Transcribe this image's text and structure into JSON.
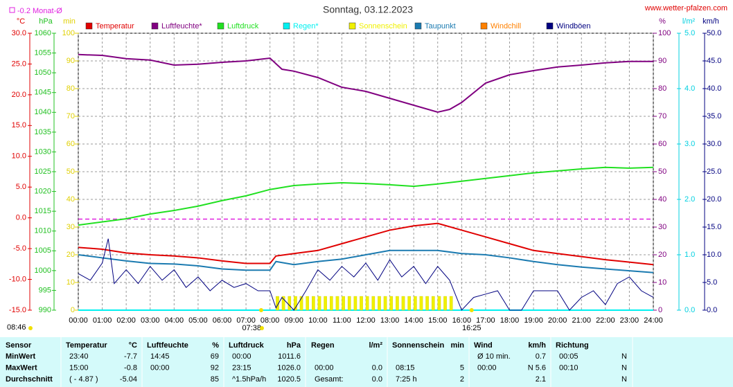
{
  "chart_data": {
    "type": "line",
    "title": "Sonntag, 03.12.2023",
    "source": "www.wetter-pfalzen.com",
    "monthly_avg": {
      "label": "-0.2 Monat-Ø",
      "value": -0.2,
      "color": "#e020e0"
    },
    "grid": true,
    "xlim": [
      0,
      24
    ],
    "xticks": [
      {
        "value": 0,
        "label": "00:00"
      },
      {
        "value": 1,
        "label": "01:00"
      },
      {
        "value": 2,
        "label": "02:00"
      },
      {
        "value": 3,
        "label": "03:00"
      },
      {
        "value": 4,
        "label": "04:00"
      },
      {
        "value": 5,
        "label": "05:00"
      },
      {
        "value": 6,
        "label": "06:00"
      },
      {
        "value": 7,
        "label": "07:00"
      },
      {
        "value": 8,
        "label": "08:00"
      },
      {
        "value": 9,
        "label": "09:00"
      },
      {
        "value": 10,
        "label": "10:00"
      },
      {
        "value": 11,
        "label": "11:00"
      },
      {
        "value": 12,
        "label": "12:00"
      },
      {
        "value": 13,
        "label": "13:00"
      },
      {
        "value": 14,
        "label": "14:00"
      },
      {
        "value": 15,
        "label": "15:00"
      },
      {
        "value": 16,
        "label": "16:00"
      },
      {
        "value": 17,
        "label": "17:00"
      },
      {
        "value": 18,
        "label": "18:00"
      },
      {
        "value": 19,
        "label": "19:00"
      },
      {
        "value": 20,
        "label": "20:00"
      },
      {
        "value": 21,
        "label": "21:00"
      },
      {
        "value": 22,
        "label": "22:00"
      },
      {
        "value": 23,
        "label": "23:00"
      },
      {
        "value": 24,
        "label": "24:00"
      }
    ],
    "sunrise": {
      "label": "07:38",
      "value": 7.633
    },
    "sunset": {
      "label": "16:25",
      "value": 16.417
    },
    "day_length": "08:46",
    "axes": {
      "temp": {
        "unit": "°C",
        "color": "#e00000",
        "side": "left",
        "lim": [
          -15,
          30
        ],
        "ticks": [
          {
            "value": 30,
            "label": "30.0"
          },
          {
            "value": 25,
            "label": "25.0"
          },
          {
            "value": 20,
            "label": "20.0"
          },
          {
            "value": 15,
            "label": "15.0"
          },
          {
            "value": 10,
            "label": "10.0"
          },
          {
            "value": 5,
            "label": "5.0"
          },
          {
            "value": 0,
            "label": "0.0"
          },
          {
            "value": -5,
            "label": "-5.0"
          },
          {
            "value": -10,
            "label": "-10.0"
          },
          {
            "value": -15,
            "label": "-15.0"
          }
        ]
      },
      "press": {
        "unit": "hPa",
        "color": "#20c020",
        "side": "left",
        "lim": [
          990,
          1060
        ],
        "ticks": [
          1060,
          1055,
          1050,
          1045,
          1040,
          1035,
          1030,
          1025,
          1020,
          1015,
          1010,
          1005,
          1000,
          995,
          990
        ]
      },
      "min": {
        "unit": "min",
        "color": "#e0d000",
        "side": "left",
        "lim": [
          0,
          100
        ],
        "ticks": [
          100,
          90,
          80,
          70,
          60,
          50,
          40,
          30,
          20,
          10,
          0
        ]
      },
      "pct": {
        "unit": "%",
        "color": "#800080",
        "side": "right",
        "lim": [
          0,
          100
        ],
        "ticks": [
          100,
          90,
          80,
          70,
          60,
          50,
          40,
          30,
          20,
          10,
          0
        ]
      },
      "rain": {
        "unit": "l/m²",
        "color": "#00d0e0",
        "side": "right",
        "lim": [
          0,
          5
        ],
        "ticks": [
          {
            "value": 5,
            "label": "5.0"
          },
          {
            "value": 4,
            "label": "4.0"
          },
          {
            "value": 3,
            "label": "3.0"
          },
          {
            "value": 2,
            "label": "2.0"
          },
          {
            "value": 1,
            "label": "1.0"
          },
          {
            "value": 0,
            "label": "0.0"
          }
        ]
      },
      "wind": {
        "unit": "km/h",
        "color": "#000080",
        "side": "right",
        "lim": [
          0,
          50
        ],
        "ticks": [
          {
            "value": 50,
            "label": "50.0"
          },
          {
            "value": 45,
            "label": "45.0"
          },
          {
            "value": 40,
            "label": "40.0"
          },
          {
            "value": 35,
            "label": "35.0"
          },
          {
            "value": 30,
            "label": "30.0"
          },
          {
            "value": 25,
            "label": "25.0"
          },
          {
            "value": 20,
            "label": "20.0"
          },
          {
            "value": 15,
            "label": "15.0"
          },
          {
            "value": 10,
            "label": "10.0"
          },
          {
            "value": 5,
            "label": "5.0"
          },
          {
            "value": 0,
            "label": "0.0"
          }
        ]
      }
    },
    "series": [
      {
        "name": "Temperatur",
        "color": "#e00000",
        "type": "line",
        "axis": "temp",
        "x": [
          0,
          1,
          2,
          3,
          4,
          5,
          6,
          7,
          8,
          8.25,
          9,
          10,
          11,
          12,
          13,
          14,
          15,
          16,
          17,
          18,
          19,
          20,
          21,
          22,
          23,
          24
        ],
        "values": [
          -4.8,
          -5.1,
          -5.7,
          -6.0,
          -6.2,
          -6.5,
          -7.0,
          -7.4,
          -7.4,
          -6.2,
          -5.8,
          -5.3,
          -4.2,
          -3.1,
          -2.0,
          -1.3,
          -0.9,
          -2.0,
          -3.1,
          -4.2,
          -5.3,
          -5.8,
          -6.3,
          -6.8,
          -7.2,
          -7.6
        ]
      },
      {
        "name": "Luftfeuchte*",
        "color": "#800080",
        "type": "line",
        "axis": "pct",
        "x": [
          0,
          1,
          2,
          3,
          4,
          5,
          6,
          7,
          8,
          8.5,
          9,
          10,
          11,
          12,
          13,
          14,
          15,
          15.5,
          16,
          17,
          18,
          19,
          20,
          21,
          22,
          23,
          24
        ],
        "values": [
          92.3,
          92,
          90.8,
          90.3,
          88.5,
          88.8,
          89.5,
          90,
          91,
          87,
          86.3,
          84,
          80.5,
          79,
          76.5,
          74,
          71.5,
          72.5,
          75,
          82,
          85,
          86.5,
          87.8,
          88.5,
          89.3,
          89.8,
          89.8
        ]
      },
      {
        "name": "Luftdruck",
        "color": "#20e020",
        "type": "line",
        "axis": "press",
        "x": [
          0,
          2,
          3,
          4,
          5,
          6,
          7,
          8,
          9,
          10,
          11,
          12,
          13,
          14,
          15,
          16,
          17,
          18,
          19,
          20,
          21,
          22,
          23,
          24
        ],
        "values": [
          1011.5,
          1013.1,
          1014.3,
          1015.2,
          1016.3,
          1017.7,
          1018.9,
          1020.5,
          1021.5,
          1021.9,
          1022.2,
          1022,
          1021.7,
          1021.3,
          1021.9,
          1022.6,
          1023.3,
          1024,
          1024.7,
          1025.2,
          1025.7,
          1026.1,
          1025.9,
          1026.1
        ]
      },
      {
        "name": "Regen*",
        "color": "#00f0f0",
        "type": "line",
        "axis": "rain",
        "x": [
          0,
          24
        ],
        "values": [
          0,
          0
        ]
      },
      {
        "name": "Sonnenschein",
        "color": "#f0f000",
        "type": "bar",
        "axis": "min",
        "x": [
          8.25,
          8.5,
          8.75,
          9,
          9.25,
          9.5,
          9.75,
          10,
          10.25,
          10.5,
          10.75,
          11,
          11.25,
          11.5,
          11.75,
          12,
          12.25,
          12.5,
          12.75,
          13,
          13.25,
          13.5,
          13.75,
          14,
          14.25,
          14.5,
          14.75,
          15,
          15.25,
          15.5
        ],
        "values": [
          5,
          5,
          5,
          5,
          5,
          5,
          5,
          5,
          5,
          5,
          5,
          5,
          5,
          5,
          5,
          5,
          5,
          5,
          5,
          5,
          5,
          5,
          5,
          5,
          5,
          5,
          5,
          5,
          5,
          5
        ]
      },
      {
        "name": "Taupunkt",
        "color": "#1a7ab0",
        "type": "line",
        "axis": "temp",
        "x": [
          0,
          1,
          2,
          3,
          4,
          5,
          6,
          7,
          8,
          8.25,
          9,
          10,
          11,
          12,
          13,
          14,
          15,
          16,
          17,
          18,
          19,
          20,
          21,
          22,
          23,
          24
        ],
        "values": [
          -6.0,
          -6.5,
          -7.0,
          -7.4,
          -7.5,
          -7.8,
          -8.3,
          -8.5,
          -8.5,
          -7.1,
          -7.6,
          -7.1,
          -6.7,
          -6.0,
          -5.3,
          -5.3,
          -5.3,
          -5.8,
          -6.0,
          -6.5,
          -7.1,
          -7.6,
          -8.0,
          -8.3,
          -8.6,
          -8.9
        ]
      },
      {
        "name": "Windchill",
        "color": "#ff8000",
        "type": "line",
        "axis": "temp",
        "x": [],
        "values": []
      },
      {
        "name": "Windböen",
        "color": "#000080",
        "type": "line",
        "axis": "wind",
        "x": [
          0,
          0.5,
          1,
          1.25,
          1.5,
          2,
          2.5,
          3,
          3.5,
          4,
          4.5,
          5,
          5.5,
          6,
          6.5,
          7,
          7.5,
          8,
          8.25,
          8.5,
          9,
          9.5,
          10,
          10.5,
          11,
          11.5,
          12,
          12.5,
          13,
          13.5,
          14,
          14.5,
          15,
          15.5,
          16,
          16.5,
          17,
          17.5,
          18,
          18.5,
          19,
          19.5,
          20,
          20.5,
          21,
          21.5,
          22,
          22.5,
          23,
          23.5,
          24
        ],
        "values": [
          6.6,
          5.4,
          8.5,
          12.9,
          4.8,
          7.3,
          4.8,
          7.9,
          5.4,
          7.3,
          4.1,
          6,
          3.5,
          5.4,
          4.1,
          4.8,
          3.5,
          3.5,
          0.4,
          2.3,
          0,
          3.5,
          7.3,
          5.4,
          7.9,
          6,
          8.5,
          5.4,
          9.1,
          6,
          7.9,
          4.8,
          7.9,
          5.4,
          0,
          2.3,
          2.9,
          3.5,
          0,
          0,
          3.5,
          3.5,
          3.5,
          0,
          2.3,
          3.5,
          1,
          4.8,
          6,
          3.5,
          2.3
        ]
      }
    ]
  },
  "table": {
    "header": [
      "Sensor",
      "Temperatur",
      "°C",
      "Luftfeuchte",
      "%",
      "Luftdruck",
      "hPa",
      "Regen",
      "l/m²",
      "Sonnenschein",
      "min",
      "Wind",
      "km/h",
      "Richtung",
      null
    ],
    "rows": [
      [
        "MinWert",
        "23:40",
        "-7.7",
        "14:45",
        "69",
        "00:00",
        "1011.6",
        null,
        null,
        null,
        null,
        "Ø 10 min.",
        "0.7",
        "00:05",
        "N"
      ],
      [
        "MaxWert",
        "15:00",
        "-0.8",
        "00:00",
        "92",
        "23:15",
        "1026.0",
        "00:00",
        "0.0",
        "08:15",
        "5",
        "00:00",
        "N 5.6",
        "00:10",
        "N"
      ],
      [
        "Durchschnitt",
        "( - 4.87 )",
        "-5.04",
        null,
        "85",
        "^1.5hPa/h",
        "1020.5",
        "Gesamt:",
        "0.0",
        "7:25 h",
        "2",
        null,
        "2.1",
        null,
        "N"
      ]
    ]
  }
}
